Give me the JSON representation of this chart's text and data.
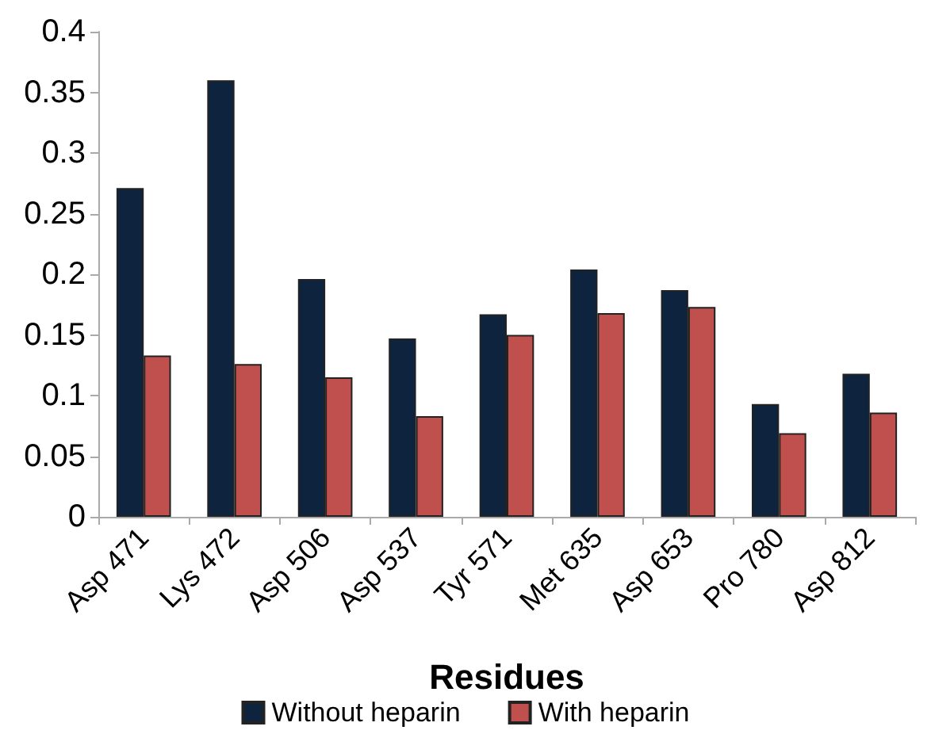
{
  "chart_data": {
    "type": "bar",
    "xlabel": "Residues",
    "categories": [
      "Asp 471",
      "Lys 472",
      "Asp 506",
      "Asp 537",
      "Tyr 571",
      "Met 635",
      "Asp 653",
      "Pro 780",
      "Asp 812"
    ],
    "series": [
      {
        "name": "Without heparin",
        "color": "#0e243e",
        "values": [
          0.271,
          0.36,
          0.196,
          0.147,
          0.167,
          0.204,
          0.187,
          0.093,
          0.118
        ]
      },
      {
        "name": "With heparin",
        "color": "#c0504d",
        "values": [
          0.133,
          0.126,
          0.115,
          0.083,
          0.15,
          0.168,
          0.173,
          0.069,
          0.086
        ]
      }
    ],
    "ylim": [
      0,
      0.4
    ],
    "yticks": [
      0,
      0.05,
      0.1,
      0.15,
      0.2,
      0.25,
      0.3,
      0.35,
      0.4
    ],
    "grid": false,
    "legend": "bottom"
  }
}
